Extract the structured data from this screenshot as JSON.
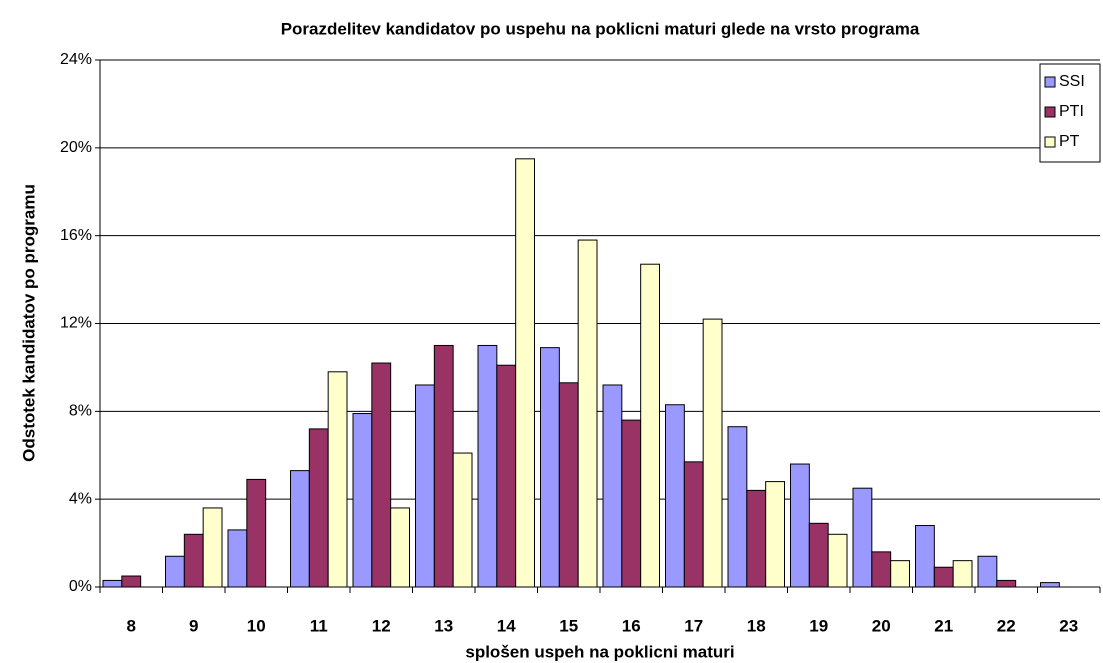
{
  "chart_data": {
    "type": "bar",
    "title": "Porazdelitev kandidatov po uspehu na poklicni maturi glede na vrsto programa",
    "x_label": "splošen uspeh na poklicni maturi",
    "y_label": "Odstotek kandidatov po programu",
    "categories": [
      "8",
      "9",
      "10",
      "11",
      "12",
      "13",
      "14",
      "15",
      "16",
      "17",
      "18",
      "19",
      "20",
      "21",
      "22",
      "23"
    ],
    "series": [
      {
        "name": "SSI",
        "color": "#9999ff",
        "values": [
          0.3,
          1.4,
          2.6,
          5.3,
          7.9,
          9.2,
          11.0,
          10.9,
          9.2,
          8.3,
          7.3,
          5.6,
          4.5,
          2.8,
          1.4,
          0.2
        ]
      },
      {
        "name": "PTI",
        "color": "#993366",
        "values": [
          0.5,
          2.4,
          4.9,
          7.2,
          10.2,
          11.0,
          10.1,
          9.3,
          7.6,
          5.7,
          4.4,
          2.9,
          1.6,
          0.9,
          0.3,
          0
        ]
      },
      {
        "name": "PT",
        "color": "#ffffcc",
        "values": [
          0,
          3.6,
          0,
          9.8,
          3.6,
          6.1,
          19.5,
          15.8,
          14.7,
          12.2,
          4.8,
          2.4,
          1.2,
          1.2,
          0,
          0
        ]
      }
    ],
    "ylim": [
      0,
      24
    ],
    "yticks": [
      {
        "value": 0,
        "label": "0%"
      },
      {
        "value": 4,
        "label": "4%"
      },
      {
        "value": 8,
        "label": "8%"
      },
      {
        "value": 12,
        "label": "12%"
      },
      {
        "value": 16,
        "label": "16%"
      },
      {
        "value": 20,
        "label": "20%"
      },
      {
        "value": 24,
        "label": "24%"
      }
    ],
    "grid": true,
    "legend": "top-right"
  }
}
